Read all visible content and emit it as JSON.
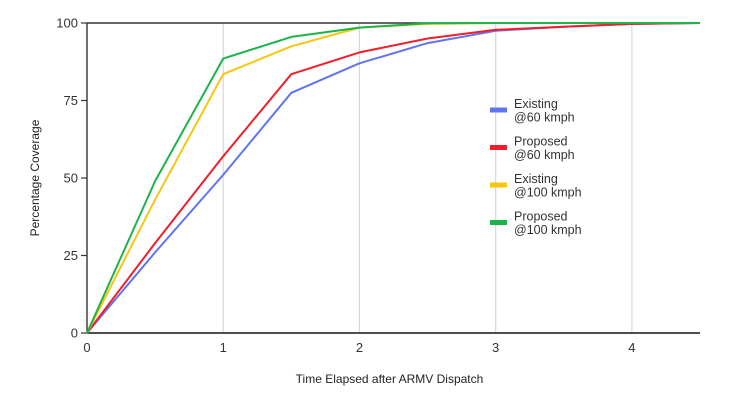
{
  "chart_data": {
    "type": "line",
    "title": "",
    "xlabel": "Time Elapsed after ARMV Dispatch",
    "ylabel": "Percentage Coverage",
    "xlim": [
      0,
      4.5
    ],
    "ylim": [
      0,
      100
    ],
    "x_ticks": [
      0,
      1,
      2,
      3,
      4
    ],
    "y_ticks": [
      0,
      25,
      50,
      75,
      100
    ],
    "grid": "vertical",
    "legend_position": "right",
    "x": [
      0,
      0.5,
      1,
      1.5,
      2,
      2.5,
      3,
      3.5,
      4,
      4.5
    ],
    "series": [
      {
        "name_lines": [
          "Existing",
          "@60 kmph"
        ],
        "color": "#6074f0",
        "values": [
          0,
          26,
          51,
          77.5,
          87,
          93.5,
          97.5,
          98.8,
          99.7,
          100
        ]
      },
      {
        "name_lines": [
          "Proposed",
          "@60 kmph"
        ],
        "color": "#ef1f2c",
        "values": [
          0,
          29,
          57,
          83.5,
          90.5,
          95,
          97.8,
          98.8,
          99.7,
          100
        ]
      },
      {
        "name_lines": [
          "Existing",
          "@100 kmph"
        ],
        "color": "#f6c611",
        "values": [
          0,
          43,
          83.5,
          92.5,
          98.5,
          99.7,
          100,
          100,
          100,
          100
        ]
      },
      {
        "name_lines": [
          "Proposed",
          "@100 kmph"
        ],
        "color": "#1cb44a",
        "values": [
          0,
          49,
          88.5,
          95.5,
          98.5,
          99.9,
          100,
          100,
          100,
          100
        ]
      }
    ]
  }
}
